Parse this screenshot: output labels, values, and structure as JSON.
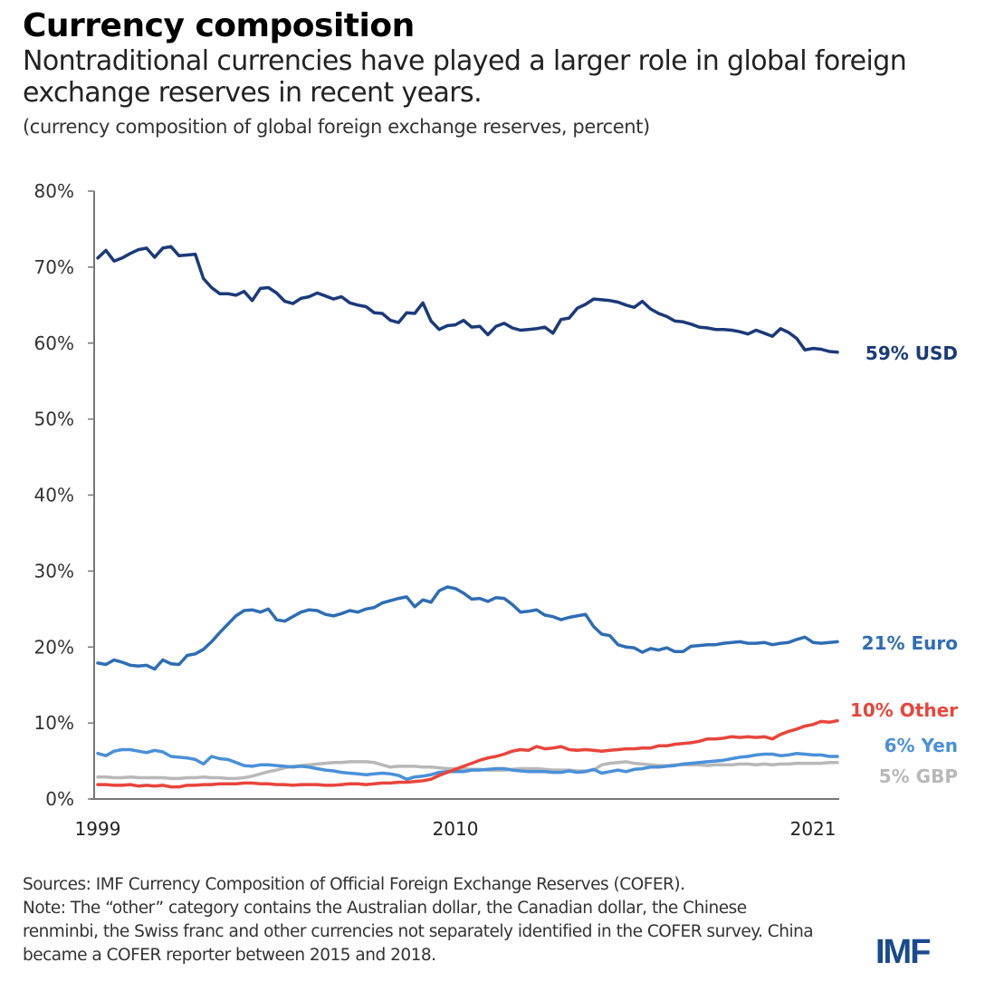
{
  "header": {
    "title": "Currency composition",
    "subtitle": "Nontraditional currencies have played a larger role in global foreign exchange reserves in recent years.",
    "unit_note": "(currency composition of global foreign exchange reserves, percent)"
  },
  "footer": {
    "source": "Sources: IMF Currency Composition of Official Foreign Exchange Reserves (COFER).",
    "note": "Note: The “other” category contains the Australian dollar, the Canadian dollar, the Chinese renminbi, the Swiss franc and other currencies not separately identified in the COFER survey. China became a COFER reporter between 2015 and 2018.",
    "logo": "IMF"
  },
  "colors": {
    "usd": "#1b3a7a",
    "euro": "#2f6db5",
    "other": "#e8453c",
    "yen": "#4a90d9",
    "gbp": "#b8b8b8",
    "axis": "#777777"
  },
  "chart_data": {
    "type": "line",
    "title": "Currency composition",
    "subtitle": "Nontraditional currencies have played a larger role in global foreign exchange reserves in recent years.",
    "xlabel": "",
    "ylabel": "(currency composition of global foreign exchange reserves, percent)",
    "x_start": "1999Q1",
    "x_end": "2021Q4",
    "frequency": "quarterly",
    "x_tick_labels": [
      "1999",
      "2010",
      "2021"
    ],
    "x_tick_years": [
      1999,
      2010,
      2021
    ],
    "ylim": [
      0,
      80
    ],
    "y_ticks": [
      0,
      10,
      20,
      30,
      40,
      50,
      60,
      70,
      80
    ],
    "y_tick_labels": [
      "0%",
      "10%",
      "20%",
      "30%",
      "40%",
      "50%",
      "60%",
      "70%",
      "80%"
    ],
    "grid": false,
    "legend": "end-of-line labels (right)",
    "series": [
      {
        "name": "USD",
        "end_label": "59% USD",
        "values": [
          71.2,
          72.2,
          70.8,
          71.2,
          71.8,
          72.3,
          72.5,
          71.3,
          72.5,
          72.7,
          71.5,
          71.6,
          71.7,
          68.5,
          67.3,
          66.5,
          66.5,
          66.3,
          66.8,
          65.6,
          67.2,
          67.3,
          66.6,
          65.5,
          65.2,
          65.9,
          66.1,
          66.6,
          66.2,
          65.8,
          66.1,
          65.3,
          65.0,
          64.8,
          64.0,
          63.9,
          63.0,
          62.7,
          64.0,
          63.9,
          65.3,
          62.9,
          61.8,
          62.3,
          62.4,
          63.0,
          62.1,
          62.2,
          61.1,
          62.2,
          62.6,
          62.0,
          61.7,
          61.8,
          61.9,
          62.1,
          61.3,
          63.1,
          63.3,
          64.6,
          65.1,
          65.8,
          65.7,
          65.6,
          65.4,
          65.0,
          64.7,
          65.5,
          64.5,
          63.9,
          63.5,
          62.9,
          62.8,
          62.5,
          62.1,
          62.0,
          61.8,
          61.8,
          61.7,
          61.5,
          61.2,
          61.7,
          61.3,
          60.9,
          61.9,
          61.4,
          60.6,
          59.1,
          59.3,
          59.2,
          58.9,
          58.8
        ]
      },
      {
        "name": "Euro",
        "end_label": "21% Euro",
        "values": [
          17.9,
          17.7,
          18.3,
          18.0,
          17.6,
          17.5,
          17.6,
          17.1,
          18.3,
          17.8,
          17.7,
          18.9,
          19.1,
          19.7,
          20.7,
          21.9,
          23.0,
          24.1,
          24.8,
          24.9,
          24.6,
          25.0,
          23.6,
          23.4,
          24.0,
          24.6,
          24.9,
          24.8,
          24.3,
          24.1,
          24.4,
          24.8,
          24.6,
          25.0,
          25.2,
          25.8,
          26.1,
          26.4,
          26.6,
          25.3,
          26.2,
          25.9,
          27.4,
          27.9,
          27.7,
          27.1,
          26.3,
          26.4,
          26.0,
          26.5,
          26.4,
          25.6,
          24.6,
          24.7,
          24.9,
          24.2,
          24.0,
          23.6,
          23.9,
          24.1,
          24.3,
          22.7,
          21.7,
          21.5,
          20.3,
          20.0,
          19.9,
          19.3,
          19.8,
          19.6,
          19.9,
          19.4,
          19.4,
          20.1,
          20.2,
          20.3,
          20.3,
          20.5,
          20.6,
          20.7,
          20.5,
          20.5,
          20.6,
          20.3,
          20.5,
          20.6,
          21.0,
          21.3,
          20.6,
          20.5,
          20.6,
          20.7
        ]
      },
      {
        "name": "Other",
        "end_label": "10% Other",
        "values": [
          1.9,
          1.9,
          1.8,
          1.8,
          1.9,
          1.7,
          1.8,
          1.7,
          1.8,
          1.6,
          1.6,
          1.8,
          1.8,
          1.9,
          1.9,
          2.0,
          2.0,
          2.0,
          2.1,
          2.1,
          2.0,
          2.0,
          1.9,
          1.9,
          1.8,
          1.9,
          1.9,
          1.9,
          1.8,
          1.8,
          1.9,
          2.0,
          2.0,
          1.9,
          2.0,
          2.1,
          2.1,
          2.2,
          2.2,
          2.3,
          2.4,
          2.6,
          3.1,
          3.5,
          3.9,
          4.3,
          4.7,
          5.1,
          5.4,
          5.6,
          5.9,
          6.3,
          6.5,
          6.4,
          6.9,
          6.6,
          6.7,
          6.9,
          6.5,
          6.4,
          6.5,
          6.4,
          6.3,
          6.4,
          6.5,
          6.6,
          6.6,
          6.7,
          6.7,
          7.0,
          7.0,
          7.2,
          7.3,
          7.4,
          7.6,
          7.9,
          7.9,
          8.0,
          8.2,
          8.1,
          8.2,
          8.1,
          8.2,
          7.9,
          8.5,
          8.9,
          9.2,
          9.6,
          9.8,
          10.2,
          10.1,
          10.3
        ]
      },
      {
        "name": "Yen",
        "end_label": "6% Yen",
        "values": [
          6.0,
          5.7,
          6.3,
          6.5,
          6.5,
          6.3,
          6.1,
          6.4,
          6.2,
          5.6,
          5.5,
          5.4,
          5.2,
          4.6,
          5.6,
          5.3,
          5.2,
          4.8,
          4.4,
          4.3,
          4.5,
          4.5,
          4.4,
          4.3,
          4.2,
          4.3,
          4.2,
          4.0,
          3.8,
          3.7,
          3.5,
          3.4,
          3.3,
          3.2,
          3.3,
          3.4,
          3.3,
          3.1,
          2.6,
          2.9,
          3.0,
          3.2,
          3.5,
          3.6,
          3.6,
          3.6,
          3.8,
          3.8,
          3.9,
          4.0,
          4.0,
          3.8,
          3.7,
          3.6,
          3.6,
          3.6,
          3.5,
          3.5,
          3.7,
          3.5,
          3.6,
          3.9,
          3.4,
          3.6,
          3.8,
          3.6,
          3.9,
          4.0,
          4.2,
          4.2,
          4.3,
          4.4,
          4.6,
          4.7,
          4.8,
          4.9,
          5.0,
          5.1,
          5.3,
          5.5,
          5.6,
          5.8,
          5.9,
          5.9,
          5.7,
          5.8,
          6.0,
          5.9,
          5.8,
          5.8,
          5.6,
          5.6
        ]
      },
      {
        "name": "GBP",
        "end_label": "5% GBP",
        "values": [
          2.9,
          2.9,
          2.8,
          2.8,
          2.9,
          2.8,
          2.8,
          2.8,
          2.8,
          2.7,
          2.7,
          2.8,
          2.8,
          2.9,
          2.8,
          2.8,
          2.7,
          2.7,
          2.8,
          3.0,
          3.3,
          3.6,
          3.8,
          4.1,
          4.3,
          4.4,
          4.5,
          4.6,
          4.7,
          4.8,
          4.8,
          4.9,
          4.9,
          4.9,
          4.8,
          4.5,
          4.2,
          4.3,
          4.3,
          4.3,
          4.2,
          4.2,
          4.1,
          4.0,
          4.0,
          4.0,
          3.9,
          3.9,
          3.8,
          3.8,
          3.8,
          3.9,
          4.0,
          4.0,
          4.0,
          3.9,
          3.8,
          3.8,
          3.8,
          3.7,
          3.7,
          3.8,
          4.5,
          4.7,
          4.8,
          4.9,
          4.7,
          4.6,
          4.5,
          4.4,
          4.4,
          4.5,
          4.5,
          4.5,
          4.5,
          4.4,
          4.5,
          4.5,
          4.5,
          4.6,
          4.6,
          4.5,
          4.6,
          4.5,
          4.6,
          4.6,
          4.7,
          4.7,
          4.7,
          4.7,
          4.8,
          4.8
        ]
      }
    ]
  }
}
